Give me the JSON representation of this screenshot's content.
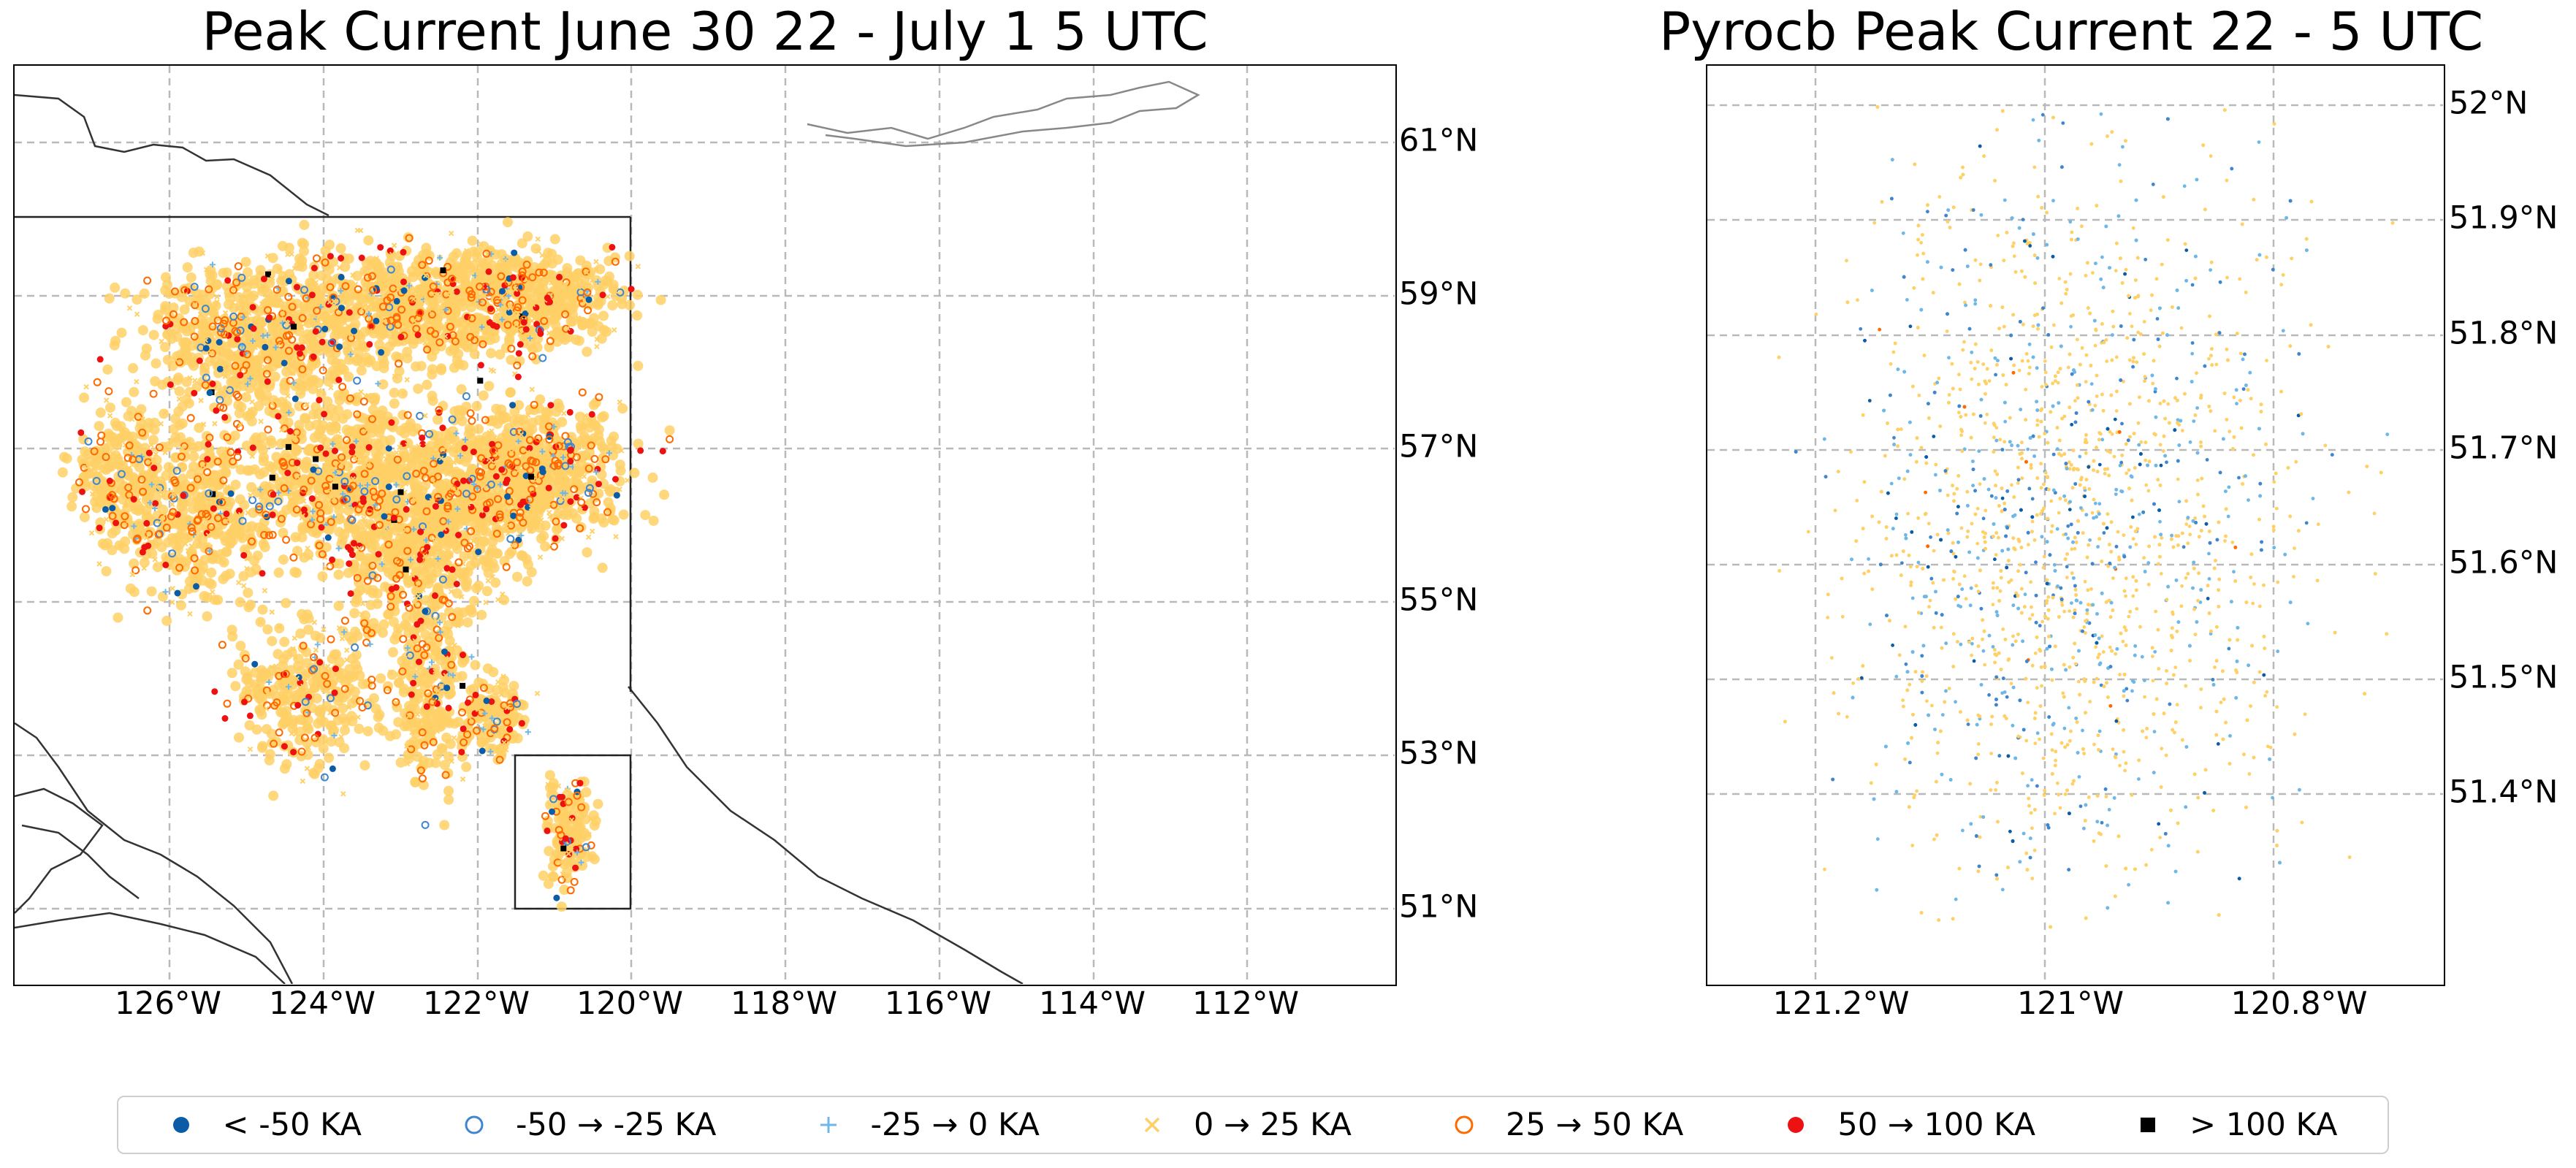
{
  "left_map": {
    "title": "Peak Current June 30 22 - July 1 5 UTC",
    "lon_labels": [
      "126°W",
      "124°W",
      "122°W",
      "120°W",
      "118°W",
      "116°W",
      "114°W",
      "112°W"
    ],
    "lat_labels": [
      "61°N",
      "59°N",
      "57°N",
      "55°N",
      "53°N",
      "51°N"
    ],
    "lon_range": [
      -127.9,
      -110.0
    ],
    "lat_range": [
      50.0,
      62.0
    ],
    "inset_box": {
      "lon": [
        -121.5,
        -120.0
      ],
      "lat": [
        51.0,
        53.0
      ]
    }
  },
  "right_map": {
    "title": "Pyrocb Peak Current 22 - 5 UTC",
    "lon_labels": [
      "121.2°W",
      "121°W",
      "120.8°W"
    ],
    "lat_labels": [
      "52°N",
      "51.9°N",
      "51.8°N",
      "51.7°N",
      "51.6°N",
      "51.5°N",
      "51.4°N"
    ],
    "lon_range": [
      -121.29,
      -120.65
    ],
    "lat_range": [
      51.24,
      52.04
    ]
  },
  "legend": {
    "items": [
      {
        "label": "< -50 KA",
        "marker": "filled-circle",
        "color": "#0b5ca6"
      },
      {
        "label": "-50 → -25 KA",
        "marker": "open-circle",
        "color": "#3f86cf"
      },
      {
        "label": "-25 → 0 KA",
        "marker": "plus",
        "color": "#6fb7e6"
      },
      {
        "label": "0 → 25 KA",
        "marker": "x",
        "color": "#ffd066"
      },
      {
        "label": "25 → 50 KA",
        "marker": "open-circle",
        "color": "#ff6a00"
      },
      {
        "label": "50 → 100 KA",
        "marker": "filled-circle",
        "color": "#ee1111"
      },
      {
        "label": "> 100 KA",
        "marker": "filled-square",
        "color": "#000000"
      }
    ]
  }
}
